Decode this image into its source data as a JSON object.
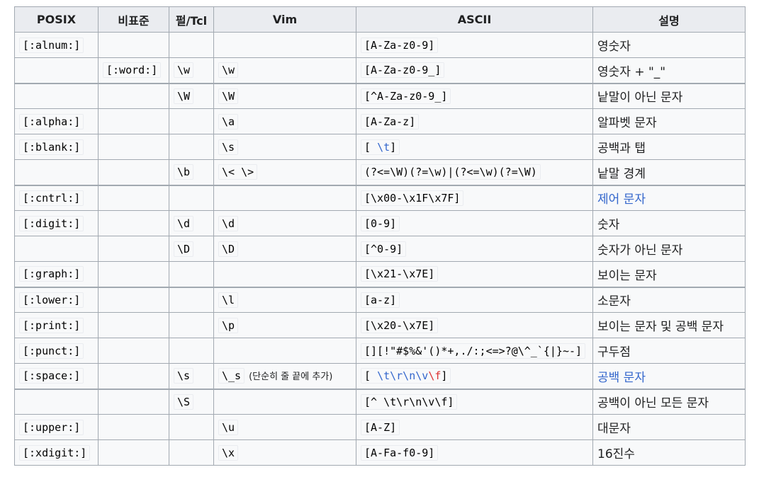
{
  "headers": [
    "POSIX",
    "비표준",
    "펄/Tcl",
    "Vim",
    "ASCII",
    "설명"
  ],
  "rows": [
    {
      "posix": "[:alnum:]",
      "nonstd": "",
      "perl": "",
      "vim": "",
      "vim_note": "",
      "ascii": "[A-Za-z0-9]",
      "desc": "영숫자",
      "desc_link": false,
      "sep": false
    },
    {
      "posix": "",
      "nonstd": "[:word:]",
      "perl": "\\w",
      "vim": "\\w",
      "vim_note": "",
      "ascii": "[A-Za-z0-9_]",
      "desc": "영숫자 + \"_\"",
      "desc_link": false,
      "sep": false
    },
    {
      "posix": "",
      "nonstd": "",
      "perl": "\\W",
      "vim": "\\W",
      "vim_note": "",
      "ascii": "[^A-Za-z0-9_]",
      "desc": "낱말이 아닌 문자",
      "desc_link": false,
      "sep": true
    },
    {
      "posix": "[:alpha:]",
      "nonstd": "",
      "perl": "",
      "vim": "\\a",
      "vim_note": "",
      "ascii": "[A-Za-z]",
      "desc": "알파벳 문자",
      "desc_link": false,
      "sep": false
    },
    {
      "posix": "[:blank:]",
      "nonstd": "",
      "perl": "",
      "vim": "\\s",
      "vim_note": "",
      "ascii_parts": [
        {
          "t": "[ ",
          "c": ""
        },
        {
          "t": "\\t",
          "c": "blue"
        },
        {
          "t": "]",
          "c": ""
        }
      ],
      "desc": "공백과 탭",
      "desc_link": false,
      "sep": false
    },
    {
      "posix": "",
      "nonstd": "",
      "perl": "\\b",
      "vim": "\\< \\>",
      "vim_note": "",
      "ascii": "(?<=\\W)(?=\\w)|(?<=\\w)(?=\\W)",
      "desc": "낱말 경계",
      "desc_link": false,
      "sep": false
    },
    {
      "posix": "[:cntrl:]",
      "nonstd": "",
      "perl": "",
      "vim": "",
      "vim_note": "",
      "ascii": "[\\x00-\\x1F\\x7F]",
      "desc": "제어 문자",
      "desc_link": true,
      "sep": true
    },
    {
      "posix": "[:digit:]",
      "nonstd": "",
      "perl": "\\d",
      "vim": "\\d",
      "vim_note": "",
      "ascii": "[0-9]",
      "desc": "숫자",
      "desc_link": false,
      "sep": false
    },
    {
      "posix": "",
      "nonstd": "",
      "perl": "\\D",
      "vim": "\\D",
      "vim_note": "",
      "ascii": "[^0-9]",
      "desc": "숫자가 아닌 문자",
      "desc_link": false,
      "sep": false
    },
    {
      "posix": "[:graph:]",
      "nonstd": "",
      "perl": "",
      "vim": "",
      "vim_note": "",
      "ascii": "[\\x21-\\x7E]",
      "desc": "보이는 문자",
      "desc_link": false,
      "sep": false
    },
    {
      "posix": "[:lower:]",
      "nonstd": "",
      "perl": "",
      "vim": "\\l",
      "vim_note": "",
      "ascii": "[a-z]",
      "desc": "소문자",
      "desc_link": false,
      "sep": true
    },
    {
      "posix": "[:print:]",
      "nonstd": "",
      "perl": "",
      "vim": "\\p",
      "vim_note": "",
      "ascii": "[\\x20-\\x7E]",
      "desc": "보이는 문자 및 공백 문자",
      "desc_link": false,
      "sep": false
    },
    {
      "posix": "[:punct:]",
      "nonstd": "",
      "perl": "",
      "vim": "",
      "vim_note": "",
      "ascii": "[][!\"#$%&'()*+,./:;<=>?@\\^_`{|}~-]",
      "desc": "구두점",
      "desc_link": false,
      "sep": false
    },
    {
      "posix": "[:space:]",
      "nonstd": "",
      "perl": "\\s",
      "vim": "\\_s",
      "vim_note": "(단순히 줄 끝에 추가)",
      "ascii_parts": [
        {
          "t": "[ ",
          "c": ""
        },
        {
          "t": "\\t\\r\\n\\v",
          "c": "blue"
        },
        {
          "t": "\\f",
          "c": "red"
        },
        {
          "t": "]",
          "c": ""
        }
      ],
      "desc": "공백 문자",
      "desc_link": true,
      "sep": false
    },
    {
      "posix": "",
      "nonstd": "",
      "perl": "\\S",
      "vim": "",
      "vim_note": "",
      "ascii": "[^ \\t\\r\\n\\v\\f]",
      "desc": "공백이 아닌 모든 문자",
      "desc_link": false,
      "sep": true
    },
    {
      "posix": "[:upper:]",
      "nonstd": "",
      "perl": "",
      "vim": "\\u",
      "vim_note": "",
      "ascii": "[A-Z]",
      "desc": "대문자",
      "desc_link": false,
      "sep": false
    },
    {
      "posix": "[:xdigit:]",
      "nonstd": "",
      "perl": "",
      "vim": "\\x",
      "vim_note": "",
      "ascii": "[A-Fa-f0-9]",
      "desc": "16진수",
      "desc_link": false,
      "sep": false
    }
  ],
  "colors": {
    "border": "#a2a9b1",
    "header_bg": "#eaecf0",
    "cell_bg": "#f8f9fa",
    "link": "#3366cc",
    "red": "#dd3333"
  }
}
